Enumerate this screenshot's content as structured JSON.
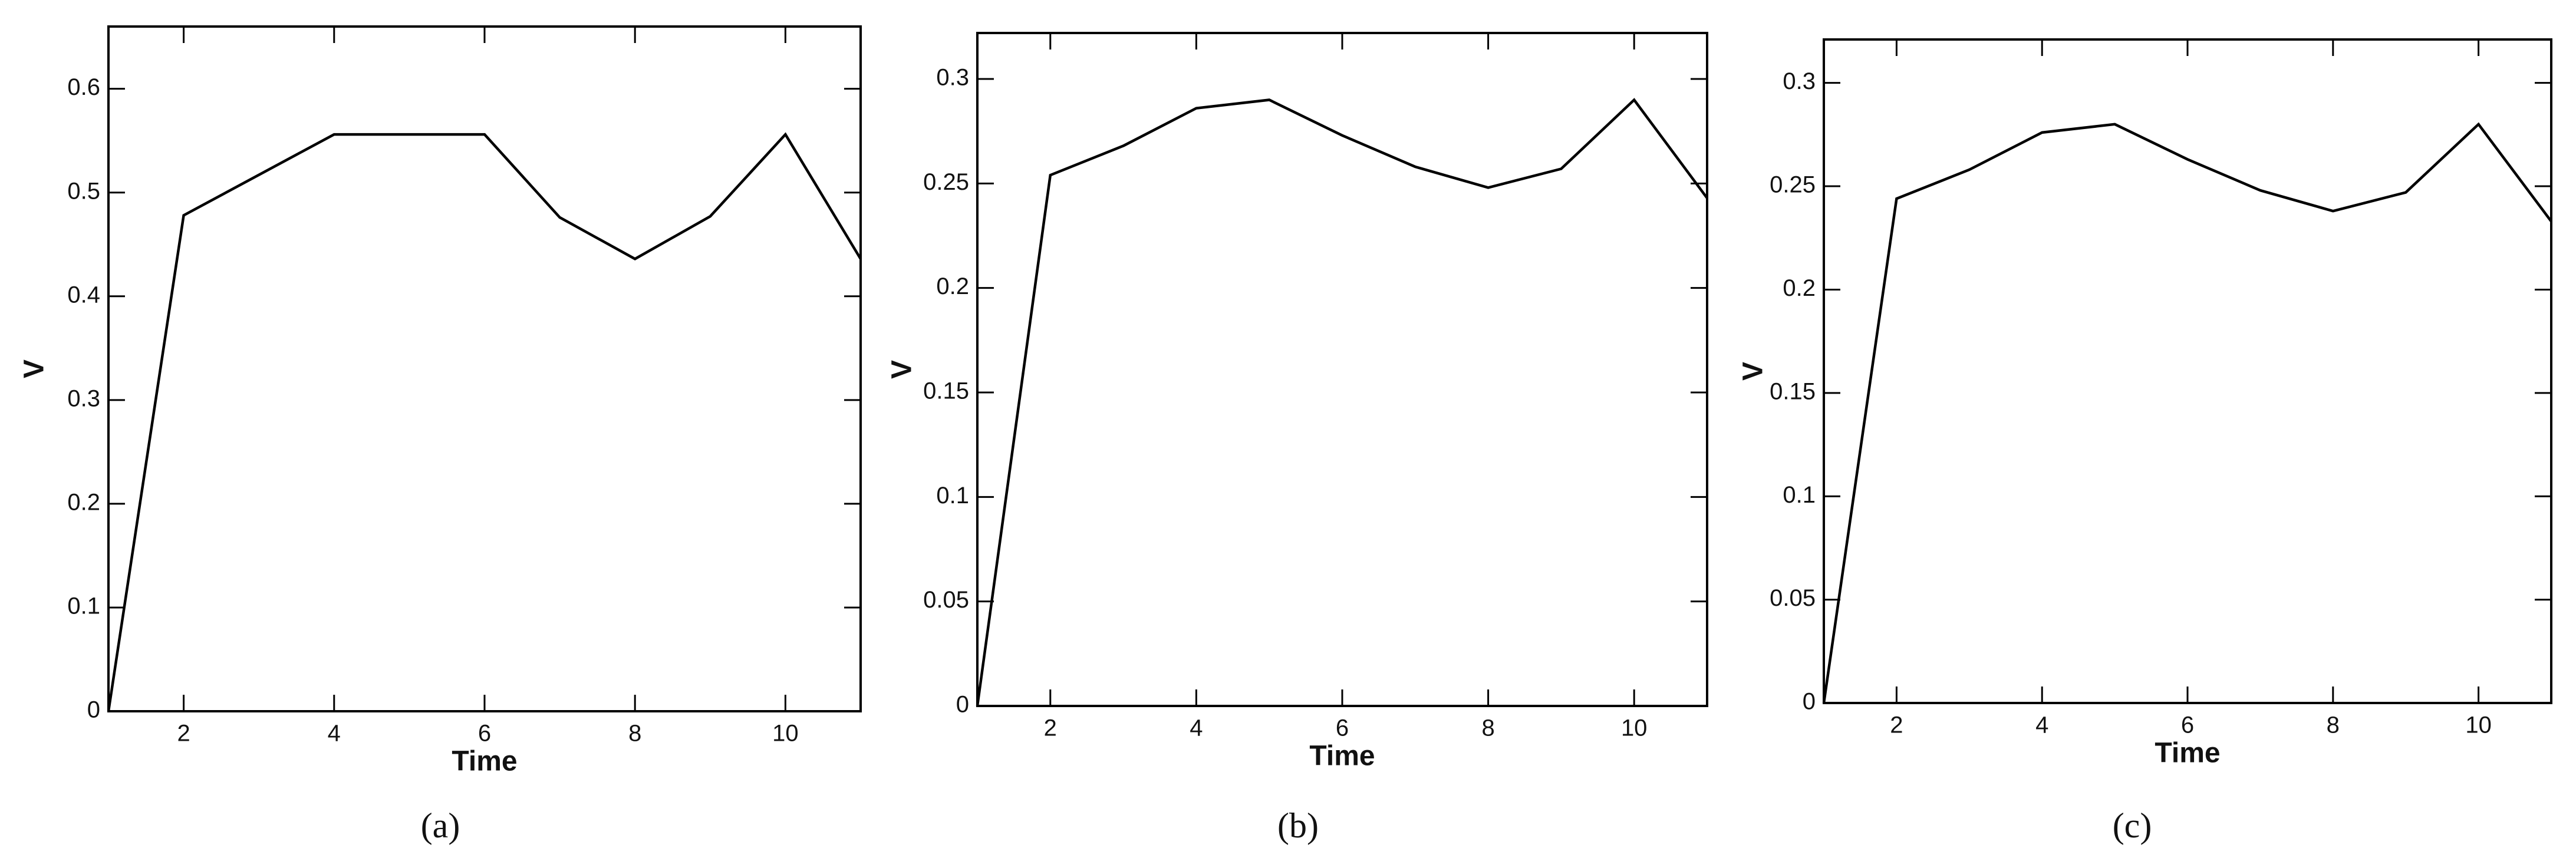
{
  "chart_data": [
    {
      "type": "line",
      "caption": "(a)",
      "xlabel": "Time",
      "ylabel": "V",
      "color": "#000000",
      "x": [
        1,
        2,
        3,
        4,
        5,
        6,
        7,
        8,
        9,
        10,
        11
      ],
      "values": [
        0,
        0.478,
        0.517,
        0.556,
        0.556,
        0.556,
        0.476,
        0.436,
        0.477,
        0.556,
        0.436
      ],
      "xlim": [
        1,
        11
      ],
      "ylim": [
        0,
        0.66
      ],
      "xticks": [
        2,
        4,
        6,
        8,
        10
      ],
      "yticks": [
        0,
        0.1,
        0.2,
        0.3,
        0.4,
        0.5,
        0.6
      ]
    },
    {
      "type": "line",
      "caption": "(b)",
      "xlabel": "Time",
      "ylabel": "V",
      "color": "#000000",
      "x": [
        1,
        2,
        3,
        4,
        5,
        6,
        7,
        8,
        9,
        10,
        11
      ],
      "values": [
        0,
        0.254,
        0.268,
        0.286,
        0.29,
        0.273,
        0.258,
        0.248,
        0.257,
        0.29,
        0.243
      ],
      "xlim": [
        1,
        11
      ],
      "ylim": [
        0,
        0.322
      ],
      "xticks": [
        2,
        4,
        6,
        8,
        10
      ],
      "yticks": [
        0,
        0.05,
        0.1,
        0.15,
        0.2,
        0.25,
        0.3
      ]
    },
    {
      "type": "line",
      "caption": "(c)",
      "xlabel": "Time",
      "ylabel": "V",
      "color": "#000000",
      "x": [
        1,
        2,
        3,
        4,
        5,
        6,
        7,
        8,
        9,
        10,
        11
      ],
      "values": [
        0,
        0.244,
        0.258,
        0.276,
        0.28,
        0.263,
        0.248,
        0.238,
        0.247,
        0.28,
        0.233
      ],
      "xlim": [
        1,
        11
      ],
      "ylim": [
        0,
        0.321
      ],
      "xticks": [
        2,
        4,
        6,
        8,
        10
      ],
      "yticks": [
        0,
        0.05,
        0.1,
        0.15,
        0.2,
        0.25,
        0.3
      ]
    }
  ]
}
